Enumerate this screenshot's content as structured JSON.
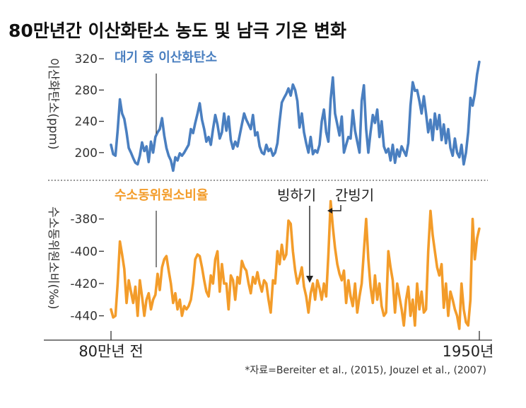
{
  "chart_data": [
    {
      "type": "line",
      "title": "80만년간 이산화탄소 농도 및 남극 기온 변화",
      "series_label": "대기 중 이산화탄소",
      "ylabel": "이산화탄소(ppm)",
      "color": "#4a7fc0",
      "ylim": [
        170,
        330
      ],
      "yticks": [
        "320",
        "280",
        "240",
        "200"
      ],
      "ytick_values": [
        320,
        280,
        240,
        200
      ],
      "x_range": [
        0,
        1
      ],
      "points": [
        [
          0.0,
          210
        ],
        [
          0.006,
          198
        ],
        [
          0.012,
          196
        ],
        [
          0.018,
          228
        ],
        [
          0.024,
          268
        ],
        [
          0.03,
          250
        ],
        [
          0.036,
          243
        ],
        [
          0.042,
          226
        ],
        [
          0.048,
          206
        ],
        [
          0.054,
          200
        ],
        [
          0.06,
          193
        ],
        [
          0.066,
          187
        ],
        [
          0.072,
          185
        ],
        [
          0.078,
          196
        ],
        [
          0.084,
          213
        ],
        [
          0.09,
          202
        ],
        [
          0.096,
          208
        ],
        [
          0.102,
          188
        ],
        [
          0.108,
          214
        ],
        [
          0.114,
          200
        ],
        [
          0.12,
          220
        ],
        [
          0.126,
          226
        ],
        [
          0.132,
          230
        ],
        [
          0.138,
          244
        ],
        [
          0.144,
          222
        ],
        [
          0.15,
          206
        ],
        [
          0.156,
          196
        ],
        [
          0.162,
          190
        ],
        [
          0.168,
          177
        ],
        [
          0.174,
          194
        ],
        [
          0.18,
          190
        ],
        [
          0.186,
          199
        ],
        [
          0.192,
          196
        ],
        [
          0.198,
          200
        ],
        [
          0.204,
          205
        ],
        [
          0.21,
          210
        ],
        [
          0.216,
          230
        ],
        [
          0.222,
          225
        ],
        [
          0.228,
          238
        ],
        [
          0.234,
          250
        ],
        [
          0.24,
          263
        ],
        [
          0.246,
          242
        ],
        [
          0.252,
          230
        ],
        [
          0.258,
          214
        ],
        [
          0.264,
          220
        ],
        [
          0.27,
          210
        ],
        [
          0.276,
          230
        ],
        [
          0.282,
          248
        ],
        [
          0.288,
          236
        ],
        [
          0.294,
          218
        ],
        [
          0.3,
          226
        ],
        [
          0.306,
          250
        ],
        [
          0.312,
          228
        ],
        [
          0.318,
          246
        ],
        [
          0.324,
          216
        ],
        [
          0.33,
          205
        ],
        [
          0.336,
          214
        ],
        [
          0.342,
          208
        ],
        [
          0.348,
          222
        ],
        [
          0.354,
          236
        ],
        [
          0.36,
          250
        ],
        [
          0.366,
          242
        ],
        [
          0.372,
          236
        ],
        [
          0.378,
          230
        ],
        [
          0.384,
          248
        ],
        [
          0.39,
          222
        ],
        [
          0.396,
          226
        ],
        [
          0.402,
          208
        ],
        [
          0.408,
          200
        ],
        [
          0.414,
          198
        ],
        [
          0.42,
          210
        ],
        [
          0.426,
          202
        ],
        [
          0.432,
          205
        ],
        [
          0.438,
          196
        ],
        [
          0.444,
          200
        ],
        [
          0.45,
          212
        ],
        [
          0.456,
          240
        ],
        [
          0.462,
          264
        ],
        [
          0.468,
          270
        ],
        [
          0.474,
          275
        ],
        [
          0.48,
          282
        ],
        [
          0.486,
          273
        ],
        [
          0.492,
          287
        ],
        [
          0.498,
          280
        ],
        [
          0.504,
          266
        ],
        [
          0.51,
          232
        ],
        [
          0.516,
          250
        ],
        [
          0.522,
          226
        ],
        [
          0.528,
          212
        ],
        [
          0.534,
          200
        ],
        [
          0.54,
          220
        ],
        [
          0.546,
          198
        ],
        [
          0.552,
          203
        ],
        [
          0.558,
          200
        ],
        [
          0.564,
          210
        ],
        [
          0.57,
          240
        ],
        [
          0.576,
          255
        ],
        [
          0.582,
          226
        ],
        [
          0.588,
          214
        ],
        [
          0.594,
          268
        ],
        [
          0.6,
          296
        ],
        [
          0.606,
          250
        ],
        [
          0.612,
          236
        ],
        [
          0.618,
          222
        ],
        [
          0.624,
          246
        ],
        [
          0.63,
          200
        ],
        [
          0.636,
          210
        ],
        [
          0.642,
          220
        ],
        [
          0.648,
          218
        ],
        [
          0.654,
          254
        ],
        [
          0.66,
          228
        ],
        [
          0.666,
          214
        ],
        [
          0.672,
          200
        ],
        [
          0.678,
          266
        ],
        [
          0.684,
          286
        ],
        [
          0.69,
          230
        ],
        [
          0.696,
          200
        ],
        [
          0.702,
          226
        ],
        [
          0.708,
          248
        ],
        [
          0.714,
          238
        ],
        [
          0.72,
          255
        ],
        [
          0.726,
          220
        ],
        [
          0.732,
          240
        ],
        [
          0.738,
          208
        ],
        [
          0.744,
          200
        ],
        [
          0.75,
          205
        ],
        [
          0.756,
          190
        ],
        [
          0.762,
          210
        ],
        [
          0.768,
          187
        ],
        [
          0.774,
          204
        ],
        [
          0.78,
          195
        ],
        [
          0.786,
          208
        ],
        [
          0.792,
          202
        ],
        [
          0.798,
          196
        ],
        [
          0.804,
          212
        ],
        [
          0.81,
          260
        ],
        [
          0.816,
          290
        ],
        [
          0.822,
          279
        ],
        [
          0.828,
          280
        ],
        [
          0.834,
          266
        ],
        [
          0.84,
          250
        ],
        [
          0.846,
          272
        ],
        [
          0.852,
          250
        ],
        [
          0.858,
          226
        ],
        [
          0.864,
          242
        ],
        [
          0.87,
          216
        ],
        [
          0.876,
          250
        ],
        [
          0.882,
          230
        ],
        [
          0.888,
          248
        ],
        [
          0.894,
          216
        ],
        [
          0.9,
          236
        ],
        [
          0.906,
          212
        ],
        [
          0.912,
          230
        ],
        [
          0.918,
          206
        ],
        [
          0.924,
          196
        ],
        [
          0.93,
          218
        ],
        [
          0.936,
          200
        ],
        [
          0.942,
          194
        ],
        [
          0.948,
          210
        ],
        [
          0.954,
          185
        ],
        [
          0.96,
          200
        ],
        [
          0.966,
          226
        ],
        [
          0.972,
          270
        ],
        [
          0.978,
          260
        ],
        [
          0.984,
          275
        ],
        [
          0.99,
          300
        ],
        [
          0.996,
          316
        ]
      ]
    },
    {
      "type": "line",
      "series_label": "수소동위원소비율",
      "ylabel": "수소동위원소비(‰)",
      "color": "#f39c2a",
      "ylim": [
        -452,
        -367
      ],
      "yticks": [
        "-380",
        "-400",
        "-420",
        "-440"
      ],
      "ytick_values": [
        -380,
        -400,
        -420,
        -440
      ],
      "x_range": [
        0,
        1
      ],
      "annotations": [
        "빙하기",
        "간빙기"
      ],
      "points": [
        [
          0.0,
          -436
        ],
        [
          0.006,
          -441
        ],
        [
          0.012,
          -440
        ],
        [
          0.018,
          -420
        ],
        [
          0.024,
          -394
        ],
        [
          0.03,
          -402
        ],
        [
          0.036,
          -411
        ],
        [
          0.042,
          -432
        ],
        [
          0.048,
          -418
        ],
        [
          0.054,
          -425
        ],
        [
          0.06,
          -432
        ],
        [
          0.066,
          -422
        ],
        [
          0.072,
          -440
        ],
        [
          0.078,
          -418
        ],
        [
          0.084,
          -428
        ],
        [
          0.09,
          -440
        ],
        [
          0.096,
          -430
        ],
        [
          0.102,
          -426
        ],
        [
          0.108,
          -436
        ],
        [
          0.114,
          -430
        ],
        [
          0.12,
          -427
        ],
        [
          0.126,
          -414
        ],
        [
          0.132,
          -424
        ],
        [
          0.138,
          -410
        ],
        [
          0.144,
          -405
        ],
        [
          0.15,
          -403
        ],
        [
          0.156,
          -412
        ],
        [
          0.162,
          -420
        ],
        [
          0.168,
          -432
        ],
        [
          0.174,
          -426
        ],
        [
          0.18,
          -436
        ],
        [
          0.186,
          -430
        ],
        [
          0.192,
          -440
        ],
        [
          0.198,
          -434
        ],
        [
          0.204,
          -436
        ],
        [
          0.21,
          -434
        ],
        [
          0.216,
          -430
        ],
        [
          0.222,
          -420
        ],
        [
          0.228,
          -405
        ],
        [
          0.234,
          -402
        ],
        [
          0.24,
          -403
        ],
        [
          0.246,
          -410
        ],
        [
          0.252,
          -418
        ],
        [
          0.258,
          -425
        ],
        [
          0.264,
          -428
        ],
        [
          0.27,
          -415
        ],
        [
          0.276,
          -420
        ],
        [
          0.282,
          -405
        ],
        [
          0.288,
          -400
        ],
        [
          0.294,
          -425
        ],
        [
          0.3,
          -408
        ],
        [
          0.306,
          -420
        ],
        [
          0.312,
          -420
        ],
        [
          0.318,
          -436
        ],
        [
          0.324,
          -415
        ],
        [
          0.33,
          -418
        ],
        [
          0.336,
          -430
        ],
        [
          0.342,
          -416
        ],
        [
          0.348,
          -420
        ],
        [
          0.354,
          -406
        ],
        [
          0.36,
          -410
        ],
        [
          0.366,
          -412
        ],
        [
          0.372,
          -420
        ],
        [
          0.378,
          -426
        ],
        [
          0.384,
          -416
        ],
        [
          0.39,
          -420
        ],
        [
          0.396,
          -413
        ],
        [
          0.402,
          -420
        ],
        [
          0.408,
          -425
        ],
        [
          0.414,
          -418
        ],
        [
          0.42,
          -420
        ],
        [
          0.426,
          -430
        ],
        [
          0.432,
          -438
        ],
        [
          0.438,
          -418
        ],
        [
          0.444,
          -420
        ],
        [
          0.45,
          -400
        ],
        [
          0.456,
          -408
        ],
        [
          0.462,
          -396
        ],
        [
          0.468,
          -405
        ],
        [
          0.474,
          -402
        ],
        [
          0.48,
          -381
        ],
        [
          0.486,
          -383
        ],
        [
          0.492,
          -400
        ],
        [
          0.498,
          -412
        ],
        [
          0.504,
          -420
        ],
        [
          0.51,
          -416
        ],
        [
          0.516,
          -410
        ],
        [
          0.522,
          -422
        ],
        [
          0.528,
          -428
        ],
        [
          0.534,
          -438
        ],
        [
          0.54,
          -426
        ],
        [
          0.546,
          -420
        ],
        [
          0.552,
          -430
        ],
        [
          0.558,
          -418
        ],
        [
          0.564,
          -423
        ],
        [
          0.57,
          -430
        ],
        [
          0.576,
          -420
        ],
        [
          0.582,
          -428
        ],
        [
          0.588,
          -402
        ],
        [
          0.594,
          -369
        ],
        [
          0.6,
          -385
        ],
        [
          0.606,
          -398
        ],
        [
          0.612,
          -408
        ],
        [
          0.618,
          -414
        ],
        [
          0.624,
          -418
        ],
        [
          0.63,
          -412
        ],
        [
          0.636,
          -432
        ],
        [
          0.642,
          -418
        ],
        [
          0.648,
          -428
        ],
        [
          0.654,
          -434
        ],
        [
          0.66,
          -420
        ],
        [
          0.666,
          -438
        ],
        [
          0.672,
          -428
        ],
        [
          0.678,
          -420
        ],
        [
          0.684,
          -400
        ],
        [
          0.69,
          -380
        ],
        [
          0.696,
          -405
        ],
        [
          0.702,
          -422
        ],
        [
          0.708,
          -432
        ],
        [
          0.714,
          -415
        ],
        [
          0.72,
          -430
        ],
        [
          0.726,
          -420
        ],
        [
          0.732,
          -434
        ],
        [
          0.738,
          -440
        ],
        [
          0.744,
          -438
        ],
        [
          0.75,
          -400
        ],
        [
          0.756,
          -410
        ],
        [
          0.762,
          -418
        ],
        [
          0.768,
          -438
        ],
        [
          0.774,
          -420
        ],
        [
          0.78,
          -428
        ],
        [
          0.786,
          -436
        ],
        [
          0.792,
          -446
        ],
        [
          0.798,
          -430
        ],
        [
          0.804,
          -422
        ],
        [
          0.81,
          -440
        ],
        [
          0.816,
          -430
        ],
        [
          0.822,
          -446
        ],
        [
          0.828,
          -420
        ],
        [
          0.834,
          -436
        ],
        [
          0.84,
          -425
        ],
        [
          0.846,
          -438
        ],
        [
          0.852,
          -436
        ],
        [
          0.858,
          -400
        ],
        [
          0.864,
          -375
        ],
        [
          0.87,
          -390
        ],
        [
          0.876,
          -400
        ],
        [
          0.882,
          -410
        ],
        [
          0.888,
          -415
        ],
        [
          0.894,
          -408
        ],
        [
          0.9,
          -435
        ],
        [
          0.906,
          -420
        ],
        [
          0.912,
          -440
        ],
        [
          0.918,
          -425
        ],
        [
          0.924,
          -430
        ],
        [
          0.93,
          -436
        ],
        [
          0.936,
          -440
        ],
        [
          0.942,
          -448
        ],
        [
          0.948,
          -420
        ],
        [
          0.954,
          -436
        ],
        [
          0.96,
          -444
        ],
        [
          0.966,
          -446
        ],
        [
          0.972,
          -430
        ],
        [
          0.978,
          -380
        ],
        [
          0.984,
          -405
        ],
        [
          0.99,
          -392
        ],
        [
          0.996,
          -386
        ]
      ]
    }
  ],
  "x_labels": {
    "start": "80만년 전",
    "end": "1950년"
  },
  "source": "*자료=Bereiter et al., (2015), Jouzel et al., (2007)"
}
